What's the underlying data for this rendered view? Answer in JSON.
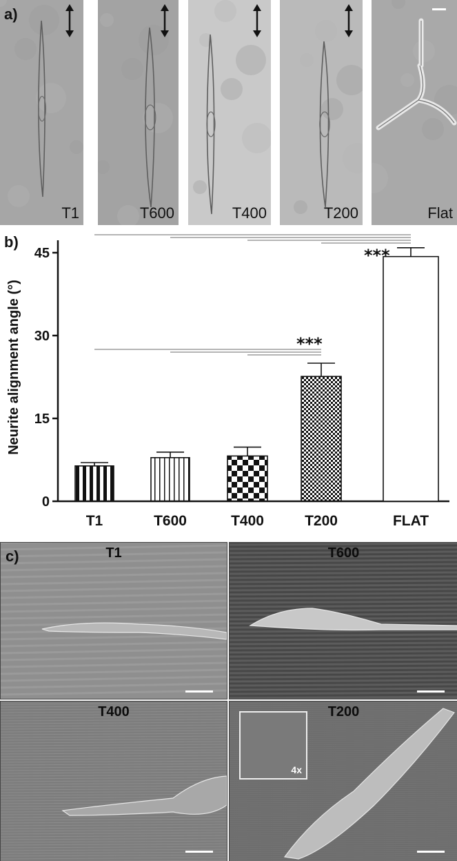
{
  "panel_a": {
    "letter": "a)",
    "images": [
      {
        "label": "T1",
        "background": "#a6a6a6"
      },
      {
        "label": "T600",
        "background": "#a3a3a3"
      },
      {
        "label": "T400",
        "background": "#c9c9c9"
      },
      {
        "label": "T200",
        "background": "#bababa"
      },
      {
        "label": "Flat",
        "background": "#a9a9a9"
      }
    ]
  },
  "panel_b": {
    "letter": "b)"
  },
  "chart_data": {
    "type": "bar",
    "categories": [
      "T1",
      "T600",
      "T400",
      "T200",
      "FLAT"
    ],
    "values": [
      6.4,
      7.9,
      8.2,
      22.6,
      44.3
    ],
    "errors": [
      0.6,
      1.0,
      1.6,
      2.4,
      1.6
    ],
    "patterns": [
      "vertical-thick",
      "vertical-thin",
      "checker-large",
      "checker-small",
      "none"
    ],
    "ylabel": "Neurite alignment angle (°)",
    "yticks": [
      0,
      15,
      30,
      45
    ],
    "ylim": [
      0,
      47
    ],
    "significance": [
      {
        "label": "***",
        "target": "T200"
      },
      {
        "label": "***",
        "target": "FLAT"
      }
    ],
    "grid": false
  },
  "panel_c": {
    "letter": "c)",
    "images": [
      {
        "label": "T1",
        "background": "#8f8f8f"
      },
      {
        "label": "T600",
        "background": "#5c5c5c"
      },
      {
        "label": "T400",
        "background": "#7d7d7d"
      },
      {
        "label": "T200",
        "background": "#6d6d6d",
        "inset_label": "4x"
      }
    ]
  }
}
